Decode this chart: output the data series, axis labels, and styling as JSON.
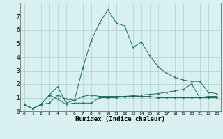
{
  "xlabel": "Humidex (Indice chaleur)",
  "background_color": "#d9f0f0",
  "grid_color": "#aacfcc",
  "line_color": "#1a6b5a",
  "xlim": [
    -0.5,
    23.5
  ],
  "ylim": [
    0,
    8
  ],
  "xticks": [
    0,
    1,
    2,
    3,
    4,
    5,
    6,
    7,
    8,
    9,
    10,
    11,
    12,
    13,
    14,
    15,
    16,
    17,
    18,
    19,
    20,
    21,
    22,
    23
  ],
  "yticks": [
    0,
    1,
    2,
    3,
    4,
    5,
    6,
    7
  ],
  "line1_x": [
    0,
    1,
    2,
    3,
    4,
    5,
    6,
    7,
    8,
    9,
    10,
    11,
    12,
    13,
    14,
    15,
    16,
    17,
    18,
    19,
    20,
    21,
    22,
    23
  ],
  "line1_y": [
    0.5,
    0.2,
    0.5,
    0.6,
    1.2,
    0.9,
    0.8,
    1.1,
    1.2,
    1.1,
    1.1,
    1.1,
    1.1,
    1.15,
    1.2,
    1.25,
    1.3,
    1.4,
    1.5,
    1.6,
    2.0,
    1.0,
    1.1,
    1.1
  ],
  "line2_x": [
    0,
    1,
    2,
    3,
    4,
    5,
    6,
    7,
    8,
    9,
    10,
    11,
    12,
    13,
    14,
    15,
    16,
    17,
    18,
    19,
    20,
    21,
    22,
    23
  ],
  "line2_y": [
    0.5,
    0.2,
    0.5,
    1.2,
    0.9,
    0.5,
    0.6,
    0.6,
    0.6,
    1.0,
    1.0,
    1.0,
    1.1,
    1.1,
    1.1,
    1.1,
    1.0,
    1.0,
    1.0,
    1.0,
    1.0,
    1.0,
    1.0,
    1.0
  ],
  "line3_x": [
    0,
    1,
    2,
    3,
    4,
    5,
    6,
    7,
    8,
    9,
    10,
    11,
    12,
    13,
    14,
    15,
    16,
    17,
    18,
    19,
    20,
    21,
    22,
    23
  ],
  "line3_y": [
    0.5,
    0.2,
    0.5,
    1.2,
    1.8,
    0.6,
    0.8,
    3.2,
    5.2,
    6.5,
    7.5,
    6.5,
    6.3,
    4.7,
    5.1,
    4.1,
    3.3,
    2.8,
    2.5,
    2.3,
    2.2,
    2.2,
    1.4,
    1.3
  ]
}
